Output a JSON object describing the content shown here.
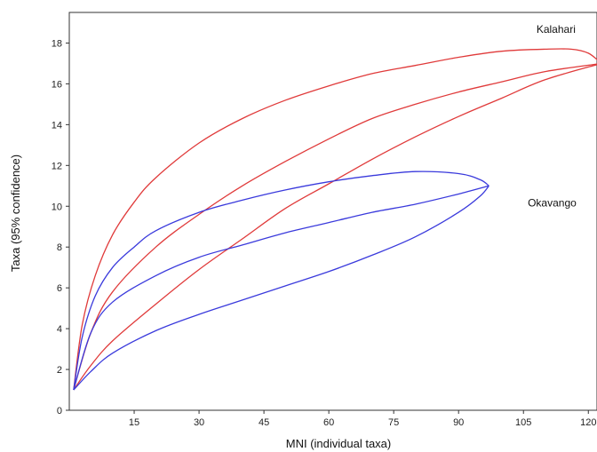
{
  "chart_data": {
    "type": "line",
    "xlabel": "MNI (individual taxa)",
    "ylabel": "Taxa (95% confidence)",
    "xlim": [
      0,
      122
    ],
    "ylim": [
      0,
      19.5
    ],
    "x_ticks": [
      15,
      30,
      45,
      60,
      75,
      90,
      105,
      120
    ],
    "y_ticks": [
      0,
      2,
      4,
      6,
      8,
      10,
      12,
      14,
      16,
      18
    ],
    "grid": false,
    "series": [
      {
        "name": "Kalahari",
        "color": "#e03a3a",
        "curves": [
          {
            "role": "upper bound",
            "points": [
              [
                1,
                1.0
              ],
              [
                3,
                4.2
              ],
              [
                6,
                6.6
              ],
              [
                10,
                8.6
              ],
              [
                15,
                10.2
              ],
              [
                20,
                11.4
              ],
              [
                30,
                13.1
              ],
              [
                40,
                14.3
              ],
              [
                50,
                15.2
              ],
              [
                60,
                15.9
              ],
              [
                70,
                16.5
              ],
              [
                80,
                16.9
              ],
              [
                90,
                17.3
              ],
              [
                100,
                17.6
              ],
              [
                110,
                17.7
              ],
              [
                116,
                17.7
              ],
              [
                120,
                17.5
              ],
              [
                123,
                17.0
              ]
            ]
          },
          {
            "role": "mean",
            "points": [
              [
                1,
                1.0
              ],
              [
                5,
                3.8
              ],
              [
                10,
                5.8
              ],
              [
                20,
                8.0
              ],
              [
                30,
                9.6
              ],
              [
                40,
                11.0
              ],
              [
                50,
                12.2
              ],
              [
                60,
                13.3
              ],
              [
                70,
                14.3
              ],
              [
                80,
                15.0
              ],
              [
                90,
                15.6
              ],
              [
                100,
                16.1
              ],
              [
                110,
                16.6
              ],
              [
                123,
                17.0
              ]
            ]
          },
          {
            "role": "lower bound",
            "points": [
              [
                1,
                1.0
              ],
              [
                5,
                2.2
              ],
              [
                10,
                3.4
              ],
              [
                20,
                5.2
              ],
              [
                30,
                6.9
              ],
              [
                40,
                8.4
              ],
              [
                50,
                9.9
              ],
              [
                60,
                11.1
              ],
              [
                70,
                12.3
              ],
              [
                80,
                13.4
              ],
              [
                90,
                14.4
              ],
              [
                100,
                15.3
              ],
              [
                110,
                16.2
              ],
              [
                123,
                17.0
              ]
            ]
          }
        ]
      },
      {
        "name": "Okavango",
        "color": "#3a3adc",
        "curves": [
          {
            "role": "upper bound",
            "points": [
              [
                1,
                1.0
              ],
              [
                3,
                3.6
              ],
              [
                6,
                5.6
              ],
              [
                10,
                7.0
              ],
              [
                15,
                8.0
              ],
              [
                20,
                8.8
              ],
              [
                30,
                9.7
              ],
              [
                40,
                10.3
              ],
              [
                50,
                10.8
              ],
              [
                60,
                11.2
              ],
              [
                70,
                11.5
              ],
              [
                80,
                11.7
              ],
              [
                90,
                11.6
              ],
              [
                95,
                11.3
              ],
              [
                97,
                11.0
              ]
            ]
          },
          {
            "role": "mean",
            "points": [
              [
                1,
                1.0
              ],
              [
                5,
                3.8
              ],
              [
                10,
                5.3
              ],
              [
                20,
                6.6
              ],
              [
                30,
                7.5
              ],
              [
                40,
                8.1
              ],
              [
                50,
                8.7
              ],
              [
                60,
                9.2
              ],
              [
                70,
                9.7
              ],
              [
                80,
                10.1
              ],
              [
                90,
                10.6
              ],
              [
                97,
                11.0
              ]
            ]
          },
          {
            "role": "lower bound",
            "points": [
              [
                1,
                1.0
              ],
              [
                5,
                1.9
              ],
              [
                10,
                2.8
              ],
              [
                20,
                3.9
              ],
              [
                30,
                4.7
              ],
              [
                40,
                5.4
              ],
              [
                50,
                6.1
              ],
              [
                60,
                6.8
              ],
              [
                70,
                7.6
              ],
              [
                80,
                8.5
              ],
              [
                90,
                9.7
              ],
              [
                95,
                10.5
              ],
              [
                97,
                11.0
              ]
            ]
          }
        ]
      }
    ],
    "annotations": [
      {
        "text": "Kalahari",
        "x": 108,
        "y": 18.5
      },
      {
        "text": "Okavango",
        "x": 106,
        "y": 10.0
      }
    ]
  }
}
